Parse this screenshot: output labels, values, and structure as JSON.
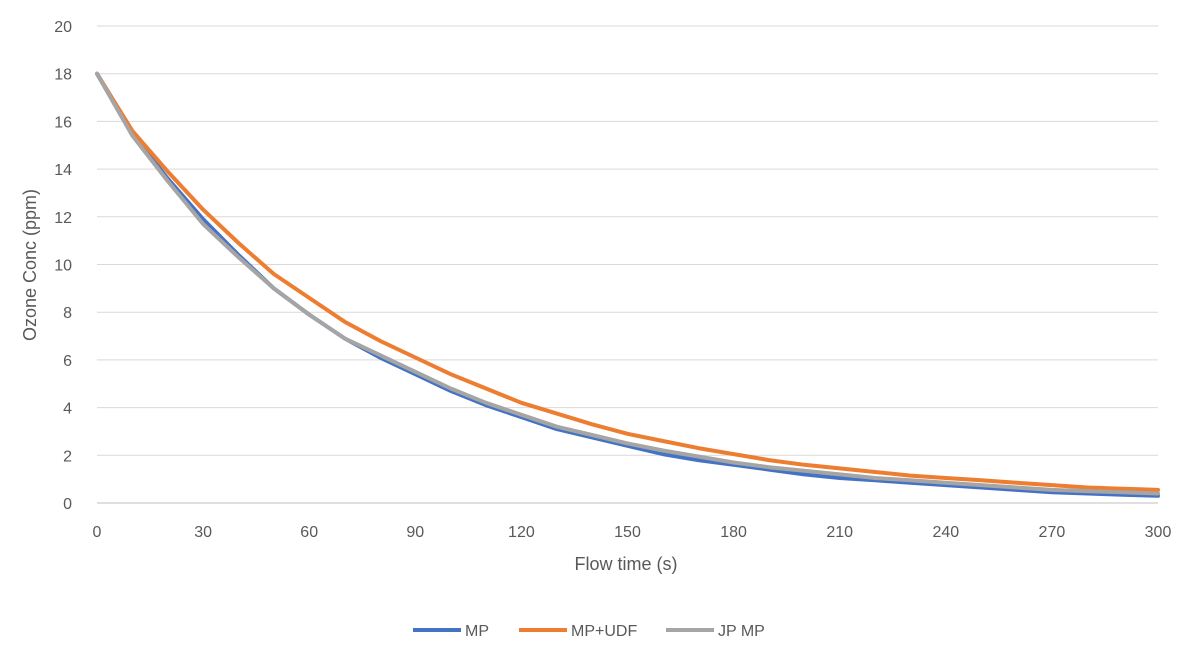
{
  "chart_data": {
    "type": "line",
    "title": "",
    "xlabel": "Flow time (s)",
    "ylabel": "Ozone Conc (ppm)",
    "xlim": [
      0,
      300
    ],
    "ylim": [
      0,
      20
    ],
    "x_ticks": [
      0,
      30,
      60,
      90,
      120,
      150,
      180,
      210,
      240,
      270,
      300
    ],
    "y_ticks": [
      0,
      2,
      4,
      6,
      8,
      10,
      12,
      14,
      16,
      18,
      20
    ],
    "grid": "horizontal",
    "legend_position": "bottom",
    "x": [
      0,
      10,
      20,
      30,
      40,
      50,
      60,
      70,
      80,
      90,
      100,
      110,
      120,
      130,
      140,
      150,
      160,
      170,
      180,
      190,
      200,
      210,
      220,
      230,
      240,
      250,
      260,
      270,
      280,
      290,
      300
    ],
    "series": [
      {
        "name": "MP",
        "color": "#4472C4",
        "values": [
          18.0,
          15.5,
          13.6,
          11.9,
          10.4,
          9.0,
          7.9,
          6.9,
          6.1,
          5.4,
          4.7,
          4.1,
          3.6,
          3.1,
          2.75,
          2.4,
          2.05,
          1.8,
          1.6,
          1.4,
          1.2,
          1.05,
          0.95,
          0.85,
          0.75,
          0.65,
          0.55,
          0.45,
          0.4,
          0.35,
          0.3
        ]
      },
      {
        "name": "MP+UDF",
        "color": "#ED7D31",
        "values": [
          18.0,
          15.6,
          13.9,
          12.3,
          10.9,
          9.6,
          8.6,
          7.6,
          6.8,
          6.1,
          5.4,
          4.8,
          4.2,
          3.75,
          3.3,
          2.9,
          2.6,
          2.3,
          2.05,
          1.8,
          1.6,
          1.45,
          1.3,
          1.15,
          1.05,
          0.95,
          0.85,
          0.75,
          0.65,
          0.6,
          0.55
        ]
      },
      {
        "name": "JP MP",
        "color": "#A5A5A5",
        "values": [
          18.0,
          15.4,
          13.5,
          11.7,
          10.3,
          9.0,
          7.9,
          6.9,
          6.2,
          5.5,
          4.8,
          4.2,
          3.7,
          3.2,
          2.85,
          2.5,
          2.2,
          1.95,
          1.7,
          1.5,
          1.35,
          1.2,
          1.05,
          0.95,
          0.85,
          0.75,
          0.65,
          0.55,
          0.5,
          0.45,
          0.4
        ]
      }
    ]
  }
}
